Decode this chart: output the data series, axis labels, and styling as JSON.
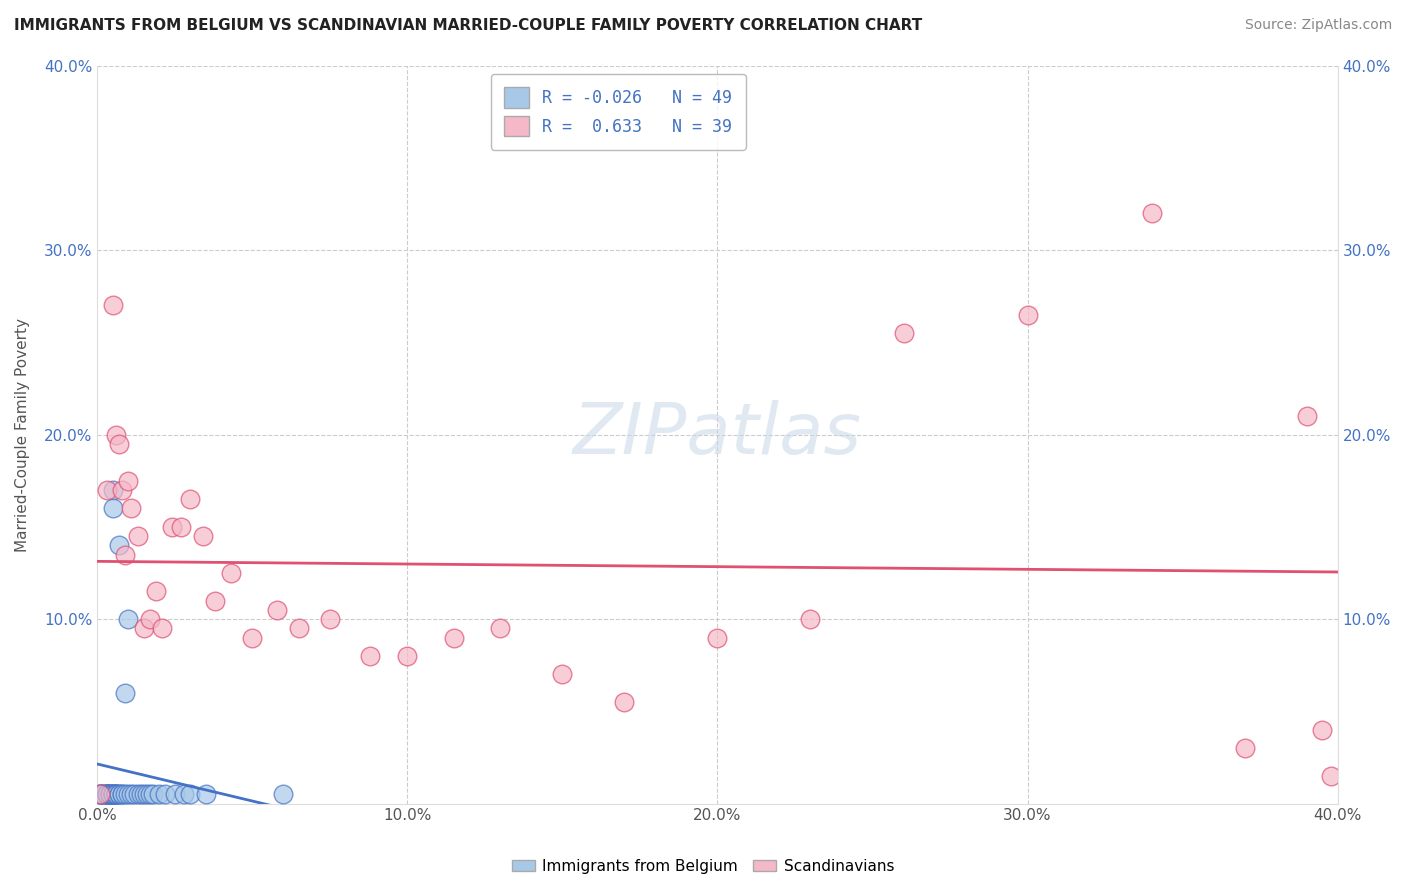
{
  "title": "IMMIGRANTS FROM BELGIUM VS SCANDINAVIAN MARRIED-COUPLE FAMILY POVERTY CORRELATION CHART",
  "source": "Source: ZipAtlas.com",
  "ylabel": "Married-Couple Family Poverty",
  "legend_label1": "Immigrants from Belgium",
  "legend_label2": "Scandinavians",
  "r1": -0.026,
  "n1": 49,
  "r2": 0.633,
  "n2": 39,
  "color1": "#a8c8e8",
  "color2": "#f4b8c8",
  "color1_line": "#4472c4",
  "color2_line": "#e05070",
  "xlim": [
    0.0,
    0.4
  ],
  "ylim": [
    0.0,
    0.4
  ],
  "x_ticks": [
    0.0,
    0.1,
    0.2,
    0.3,
    0.4
  ],
  "y_ticks": [
    0.0,
    0.1,
    0.2,
    0.3,
    0.4
  ],
  "belgium_x": [
    0.001,
    0.001,
    0.001,
    0.002,
    0.002,
    0.002,
    0.003,
    0.003,
    0.003,
    0.003,
    0.003,
    0.004,
    0.004,
    0.004,
    0.004,
    0.005,
    0.005,
    0.005,
    0.005,
    0.005,
    0.005,
    0.006,
    0.006,
    0.006,
    0.006,
    0.007,
    0.007,
    0.007,
    0.008,
    0.008,
    0.009,
    0.009,
    0.01,
    0.01,
    0.011,
    0.012,
    0.013,
    0.014,
    0.015,
    0.016,
    0.017,
    0.018,
    0.02,
    0.022,
    0.025,
    0.028,
    0.03,
    0.035,
    0.06
  ],
  "belgium_y": [
    0.005,
    0.005,
    0.005,
    0.005,
    0.005,
    0.005,
    0.005,
    0.005,
    0.005,
    0.005,
    0.005,
    0.005,
    0.005,
    0.005,
    0.005,
    0.005,
    0.005,
    0.005,
    0.005,
    0.17,
    0.16,
    0.005,
    0.005,
    0.005,
    0.005,
    0.005,
    0.14,
    0.005,
    0.005,
    0.005,
    0.06,
    0.005,
    0.005,
    0.1,
    0.005,
    0.005,
    0.005,
    0.005,
    0.005,
    0.005,
    0.005,
    0.005,
    0.005,
    0.005,
    0.005,
    0.005,
    0.005,
    0.005,
    0.005
  ],
  "scandinavian_x": [
    0.001,
    0.003,
    0.005,
    0.006,
    0.007,
    0.008,
    0.009,
    0.01,
    0.011,
    0.013,
    0.015,
    0.017,
    0.019,
    0.021,
    0.024,
    0.027,
    0.03,
    0.034,
    0.038,
    0.043,
    0.05,
    0.058,
    0.065,
    0.075,
    0.088,
    0.1,
    0.115,
    0.13,
    0.15,
    0.17,
    0.2,
    0.23,
    0.26,
    0.3,
    0.34,
    0.37,
    0.39,
    0.395,
    0.398
  ],
  "scandinavian_y": [
    0.005,
    0.17,
    0.27,
    0.2,
    0.195,
    0.17,
    0.135,
    0.175,
    0.16,
    0.145,
    0.095,
    0.1,
    0.115,
    0.095,
    0.15,
    0.15,
    0.165,
    0.145,
    0.11,
    0.125,
    0.09,
    0.105,
    0.095,
    0.1,
    0.08,
    0.08,
    0.09,
    0.095,
    0.07,
    0.055,
    0.09,
    0.1,
    0.255,
    0.265,
    0.32,
    0.03,
    0.21,
    0.04,
    0.015
  ]
}
